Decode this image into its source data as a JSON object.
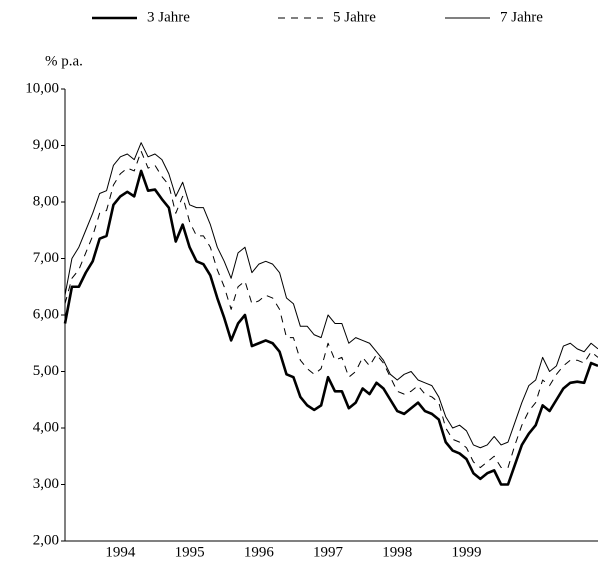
{
  "chart_data": {
    "type": "line",
    "y_label": "% p.a.",
    "x": [
      1993.2,
      1993.3,
      1993.4,
      1993.5,
      1993.6,
      1993.7,
      1993.8,
      1993.9,
      1994.0,
      1994.1,
      1994.2,
      1994.3,
      1994.4,
      1994.5,
      1994.6,
      1994.7,
      1994.8,
      1994.9,
      1995.0,
      1995.1,
      1995.2,
      1995.3,
      1995.4,
      1995.5,
      1995.6,
      1995.7,
      1995.8,
      1995.9,
      1996.0,
      1996.1,
      1996.2,
      1996.3,
      1996.4,
      1996.5,
      1996.6,
      1996.7,
      1996.8,
      1996.9,
      1997.0,
      1997.1,
      1997.2,
      1997.3,
      1997.4,
      1997.5,
      1997.6,
      1997.7,
      1997.8,
      1997.9,
      1998.0,
      1998.1,
      1998.2,
      1998.3,
      1998.4,
      1998.5,
      1998.6,
      1998.7,
      1998.8,
      1998.9,
      1999.0,
      1999.1,
      1999.2,
      1999.3,
      1999.4,
      1999.5,
      1999.6,
      1999.7,
      1999.8,
      1999.9,
      2000.0,
      2000.1,
      2000.2,
      2000.3,
      2000.4,
      2000.5,
      2000.6,
      2000.7,
      2000.8,
      2000.9
    ],
    "series": [
      {
        "name": "3 Jahre",
        "color": "#000000",
        "width": 2.6,
        "dash": "none",
        "values": [
          5.85,
          6.5,
          6.5,
          6.75,
          6.95,
          7.35,
          7.4,
          7.95,
          8.1,
          8.18,
          8.1,
          8.55,
          8.2,
          8.22,
          8.05,
          7.9,
          7.3,
          7.6,
          7.2,
          6.95,
          6.9,
          6.7,
          6.3,
          5.95,
          5.55,
          5.85,
          6.0,
          5.45,
          5.5,
          5.55,
          5.5,
          5.35,
          4.95,
          4.9,
          4.55,
          4.4,
          4.32,
          4.4,
          4.9,
          4.65,
          4.65,
          4.35,
          4.45,
          4.7,
          4.6,
          4.8,
          4.7,
          4.5,
          4.3,
          4.25,
          4.35,
          4.45,
          4.3,
          4.25,
          4.15,
          3.75,
          3.6,
          3.55,
          3.45,
          3.2,
          3.1,
          3.2,
          3.25,
          3.0,
          3.0,
          3.35,
          3.7,
          3.9,
          4.05,
          4.4,
          4.3,
          4.5,
          4.7,
          4.8,
          4.82,
          4.8,
          5.15,
          5.1
        ]
      },
      {
        "name": "5 Jahre",
        "color": "#000000",
        "width": 1,
        "dash": "7 6",
        "values": [
          6.2,
          6.65,
          6.8,
          7.1,
          7.4,
          7.8,
          7.85,
          8.3,
          8.5,
          8.6,
          8.55,
          8.9,
          8.6,
          8.65,
          8.45,
          8.3,
          7.8,
          8.1,
          7.65,
          7.4,
          7.4,
          7.2,
          6.8,
          6.5,
          6.1,
          6.5,
          6.6,
          6.2,
          6.25,
          6.35,
          6.3,
          6.1,
          5.6,
          5.6,
          5.2,
          5.05,
          4.95,
          5.05,
          5.5,
          5.2,
          5.25,
          4.9,
          5.0,
          5.25,
          5.1,
          5.3,
          5.15,
          4.9,
          4.65,
          4.6,
          4.65,
          4.75,
          4.6,
          4.55,
          4.45,
          4.0,
          3.8,
          3.75,
          3.65,
          3.4,
          3.3,
          3.4,
          3.5,
          3.3,
          3.3,
          3.7,
          4.05,
          4.3,
          4.45,
          4.85,
          4.75,
          4.95,
          5.1,
          5.2,
          5.2,
          5.15,
          5.35,
          5.25
        ]
      },
      {
        "name": "7 Jahre",
        "color": "#000000",
        "width": 1,
        "dash": "none",
        "values": [
          6.35,
          7.0,
          7.2,
          7.5,
          7.8,
          8.15,
          8.2,
          8.65,
          8.8,
          8.85,
          8.75,
          9.05,
          8.8,
          8.85,
          8.75,
          8.5,
          8.1,
          8.35,
          7.95,
          7.9,
          7.9,
          7.6,
          7.2,
          6.95,
          6.65,
          7.1,
          7.2,
          6.75,
          6.9,
          6.95,
          6.9,
          6.75,
          6.3,
          6.2,
          5.8,
          5.8,
          5.65,
          5.6,
          6.0,
          5.85,
          5.85,
          5.5,
          5.6,
          5.55,
          5.5,
          5.35,
          5.2,
          4.95,
          4.85,
          4.95,
          5.0,
          4.85,
          4.8,
          4.75,
          4.55,
          4.2,
          4.0,
          4.05,
          3.95,
          3.7,
          3.65,
          3.7,
          3.85,
          3.7,
          3.75,
          4.1,
          4.45,
          4.75,
          4.85,
          5.25,
          5.0,
          5.1,
          5.45,
          5.5,
          5.4,
          5.35,
          5.5,
          5.4
        ]
      }
    ],
    "xlim": [
      1993.2,
      2000.9
    ],
    "xticks": [
      1994,
      1995,
      1996,
      1997,
      1998,
      1999
    ],
    "ylim": [
      2,
      10
    ],
    "yticks": [
      {
        "value": 2,
        "label": "2,00"
      },
      {
        "value": 3,
        "label": "3,00"
      },
      {
        "value": 4,
        "label": "4,00"
      },
      {
        "value": 5,
        "label": "5,00"
      },
      {
        "value": 6,
        "label": "6,00"
      },
      {
        "value": 7,
        "label": "7,00"
      },
      {
        "value": 8,
        "label": "8,00"
      },
      {
        "value": 9,
        "label": "9,00"
      },
      {
        "value": 10,
        "label": "10,00"
      }
    ],
    "legend": "top",
    "grid": false
  }
}
